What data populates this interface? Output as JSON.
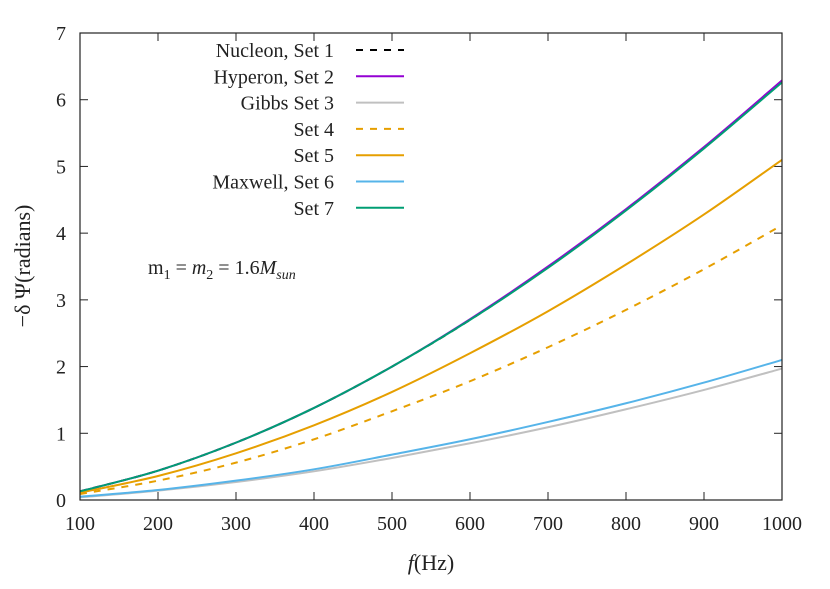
{
  "chart_data": {
    "type": "line",
    "xlabel": {
      "italic": "f",
      "rest": "(Hz)"
    },
    "ylabel": "−δ Ψ(radians)",
    "xlim": [
      100,
      1000
    ],
    "ylim": [
      0,
      7
    ],
    "xticks": [
      100,
      200,
      300,
      400,
      500,
      600,
      700,
      800,
      900,
      1000
    ],
    "yticks": [
      0,
      1,
      2,
      3,
      4,
      5,
      6,
      7
    ],
    "grid": false,
    "legend_position": "top-left",
    "annotation": {
      "m1": "m",
      "m1_sub": "1",
      "eq1": " = ",
      "m2": "m",
      "m2_sub": "2",
      "eq2": " = 1.6",
      "M": "M",
      "M_sub": "sun"
    },
    "x": [
      100,
      200,
      300,
      400,
      500,
      600,
      700,
      800,
      900,
      1000
    ],
    "series": [
      {
        "name": "Nucleon, Set 1",
        "color": "#000000",
        "dashed": true,
        "values": [
          0.13,
          0.44,
          0.86,
          1.38,
          2.0,
          2.7,
          3.49,
          4.35,
          5.28,
          6.28
        ]
      },
      {
        "name": "Hyperon, Set 2",
        "color": "#9400d3",
        "dashed": false,
        "values": [
          0.13,
          0.44,
          0.86,
          1.38,
          2.0,
          2.71,
          3.5,
          4.36,
          5.29,
          6.29
        ]
      },
      {
        "name": "Gibbs Set 3",
        "color": "#c0c0c0",
        "dashed": false,
        "values": [
          0.04,
          0.14,
          0.27,
          0.43,
          0.63,
          0.85,
          1.09,
          1.36,
          1.65,
          1.97
        ]
      },
      {
        "name": "Set 4",
        "color": "#e69f00",
        "dashed": true,
        "values": [
          0.09,
          0.29,
          0.56,
          0.91,
          1.33,
          1.78,
          2.29,
          2.85,
          3.46,
          4.12
        ]
      },
      {
        "name": "Set 5",
        "color": "#e69f00",
        "dashed": false,
        "values": [
          0.11,
          0.36,
          0.7,
          1.12,
          1.62,
          2.2,
          2.83,
          3.53,
          4.28,
          5.1
        ]
      },
      {
        "name": "Maxwell, Set 6",
        "color": "#56b4e9",
        "dashed": false,
        "values": [
          0.05,
          0.15,
          0.29,
          0.46,
          0.68,
          0.91,
          1.17,
          1.45,
          1.76,
          2.1
        ]
      },
      {
        "name": "Set 7",
        "color": "#009e73",
        "dashed": false,
        "values": [
          0.13,
          0.44,
          0.86,
          1.38,
          2.0,
          2.7,
          3.48,
          4.34,
          5.27,
          6.26
        ]
      }
    ]
  }
}
